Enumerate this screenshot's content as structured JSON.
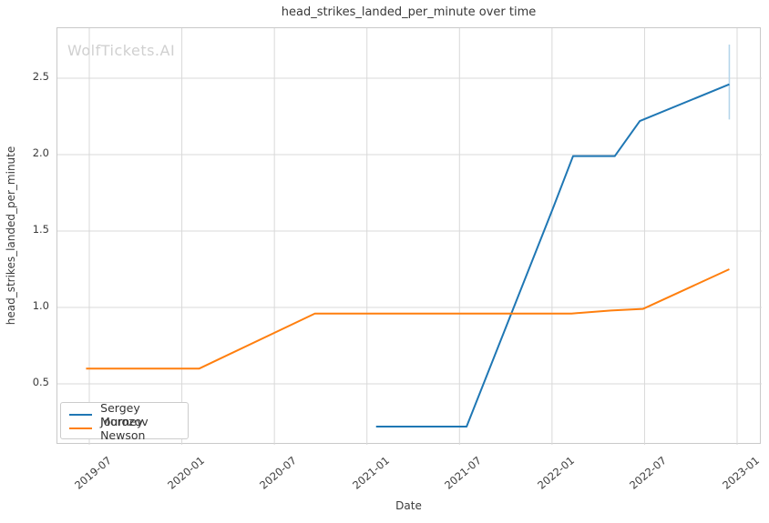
{
  "chart_data": {
    "type": "line",
    "title": "head_strikes_landed_per_minute over time",
    "watermark": "WolfTickets.AI",
    "xlabel": "Date",
    "ylabel": "head_strikes_landed_per_minute",
    "grid": true,
    "legend_position": "lower left",
    "x_ticks": [
      "2019-07",
      "2020-01",
      "2020-07",
      "2021-01",
      "2021-07",
      "2022-01",
      "2022-07",
      "2023-01"
    ],
    "y_ticks": [
      "0.5",
      "1.0",
      "1.5",
      "2.0",
      "2.5"
    ],
    "xlim": [
      "2019-05-01",
      "2023-02-18"
    ],
    "ylim": [
      0.1,
      2.83
    ],
    "colors": {
      "grid": "#d9d9d9",
      "spine": "#c9c9c9",
      "text": "#3b3b3b",
      "watermark": "#d0d0d0"
    },
    "series": [
      {
        "name": "Sergey Morozov",
        "color": "#1f77b4",
        "points": [
          [
            "2021-01-19",
            0.22
          ],
          [
            "2021-07-15",
            0.22
          ],
          [
            "2022-01-03",
            1.65
          ],
          [
            "2022-02-12",
            1.99
          ],
          [
            "2022-05-03",
            1.99
          ],
          [
            "2022-06-22",
            2.22
          ],
          [
            "2022-12-16",
            2.46
          ]
        ]
      },
      {
        "name": "Journey Newson",
        "color": "#ff7f0e",
        "points": [
          [
            "2019-06-25",
            0.6
          ],
          [
            "2020-02-05",
            0.6
          ],
          [
            "2020-09-20",
            0.96
          ],
          [
            "2022-02-09",
            0.96
          ],
          [
            "2022-04-26",
            0.98
          ],
          [
            "2022-06-28",
            0.99
          ],
          [
            "2022-12-16",
            1.25
          ]
        ]
      }
    ],
    "error_bar": {
      "series": "Sergey Morozov",
      "date": "2022-12-16",
      "low": 2.23,
      "high": 2.72,
      "color": "#b5d5ea"
    }
  }
}
